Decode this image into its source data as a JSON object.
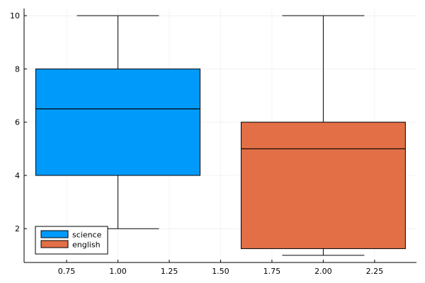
{
  "chart_data": {
    "type": "box",
    "title": "",
    "xlabel": "",
    "ylabel": "",
    "xlim": [
      0.543,
      2.454
    ],
    "ylim": [
      0.73,
      10.27
    ],
    "grid": true,
    "legend_position": "bottom-left",
    "xticks": [
      0.75,
      1.0,
      1.25,
      1.5,
      1.75,
      2.0,
      2.25
    ],
    "xtick_labels": [
      "0.75",
      "1.00",
      "1.25",
      "1.50",
      "1.75",
      "2.00",
      "2.25"
    ],
    "yticks": [
      2,
      4,
      6,
      8,
      10
    ],
    "ytick_labels": [
      "2",
      "4",
      "6",
      "8",
      "10"
    ],
    "series": [
      {
        "name": "science",
        "x": 1.0,
        "box_width": 0.8,
        "whisker_cap_width": 0.4,
        "min": 2,
        "q1": 4,
        "median": 6.5,
        "q3": 8,
        "max": 10,
        "color": "#009AFA"
      },
      {
        "name": "english",
        "x": 2.0,
        "box_width": 0.8,
        "whisker_cap_width": 0.4,
        "min": 1,
        "q1": 1.25,
        "median": 5,
        "q3": 6,
        "max": 10,
        "color": "#E26F46"
      }
    ]
  },
  "legend": {
    "items": [
      {
        "label": "science",
        "color": "#009AFA"
      },
      {
        "label": "english",
        "color": "#E26F46"
      }
    ]
  }
}
